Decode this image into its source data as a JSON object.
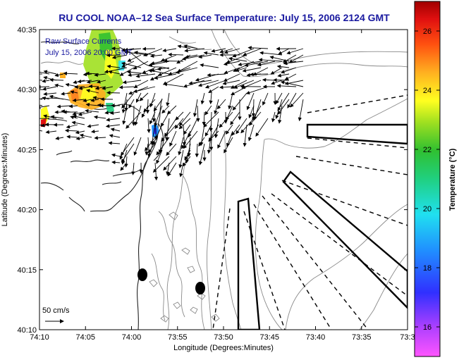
{
  "title": "RU COOL  NOAA–12  Sea Surface Temperature:  July 15, 2006 2124 GMT",
  "overlay": {
    "line1": "Raw Surface Currents",
    "line2": "July 15, 2006 20:00 GMT"
  },
  "scale_label": "50 cm/s",
  "x_axis": {
    "label": "Longitude (Degrees:Minutes)",
    "ticks": [
      "74:10",
      "74:05",
      "74:00",
      "73:55",
      "73:50",
      "73:45",
      "73:40",
      "73:35",
      "73:3"
    ]
  },
  "y_axis": {
    "label": "Latitude (Degrees:Minutes)",
    "ticks": [
      "40:35",
      "40:30",
      "40:25",
      "40:20",
      "40:15",
      "40:10"
    ]
  },
  "colorbar": {
    "label": "Temperature (°C)",
    "ticks": [
      "26",
      "24",
      "22",
      "20",
      "18",
      "16"
    ],
    "min": 15,
    "max": 27
  },
  "colors": {
    "title": "#1a1aa0",
    "contour": "#7a7a7a",
    "vector": "#000000"
  }
}
